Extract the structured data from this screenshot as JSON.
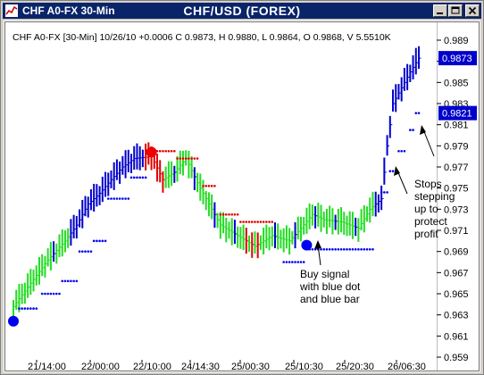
{
  "window": {
    "title": "CHF A0-FX 30-Min",
    "buttons": [
      "minimize-icon",
      "maximize-icon",
      "close-icon"
    ]
  },
  "colors": {
    "up": "#0000cc",
    "neutral": "#22dd22",
    "down": "#e00000",
    "stops": "#0000ee",
    "titlebar": "#0a246a",
    "price_box": "#0000cc"
  },
  "chart_data": {
    "type": "bar",
    "title": "CHF/USD (FOREX)",
    "info_line": "CHF A0-FX [30-Min] 10/26/10 +0.0006 C 0.9873, H 0.9880, L 0.9864, O 0.9868, V 5.5510K",
    "ylim": [
      0.959,
      0.989
    ],
    "y_ticks": [
      "0.989",
      "0.987",
      "0.985",
      "0.983",
      "0.981",
      "0.979",
      "0.977",
      "0.975",
      "0.973",
      "0.971",
      "0.969",
      "0.967",
      "0.965",
      "0.963",
      "0.961",
      "0.959"
    ],
    "x_ticks": [
      "21/14:00",
      "22/00:00",
      "22/10:00",
      "24/14:30",
      "25/00:30",
      "25/10:30",
      "25/20:30",
      "26/06:30"
    ],
    "price_labels": [
      {
        "text": "0.9873",
        "value": 0.9873
      },
      {
        "text": "0.9821",
        "value": 0.9821
      }
    ],
    "annotations": [
      {
        "lines": [
          "Buy signal",
          "with blue dot",
          "and blue bar"
        ]
      },
      {
        "lines": [
          "Stops",
          "stepping",
          "up to",
          "protect",
          "profit"
        ]
      }
    ],
    "signals": [
      {
        "type": "buy",
        "color": "#0000ee",
        "bar": 0,
        "price": 0.9624
      },
      {
        "type": "sell",
        "color": "#ee0000",
        "bar": 48,
        "price": 0.9784
      },
      {
        "type": "buy",
        "color": "#0000ee",
        "bar": 102,
        "price": 0.9696
      }
    ]
  }
}
